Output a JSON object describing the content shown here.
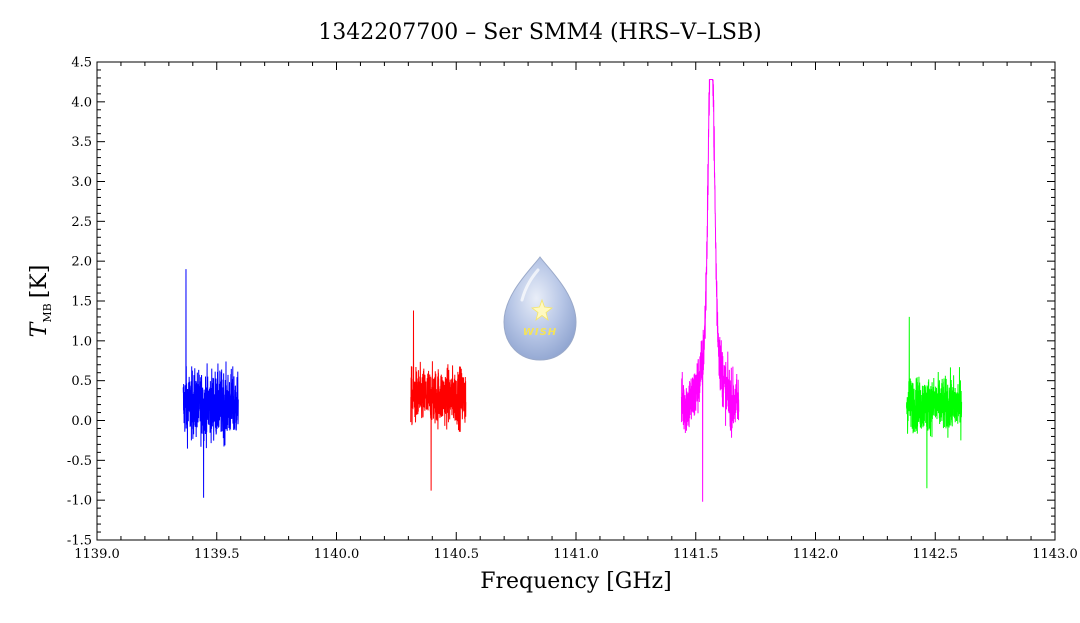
{
  "chart_data": {
    "type": "line",
    "title": "1342207700 – Ser SMM4 (HRS–V–LSB)",
    "xlabel": "Frequency [GHz]",
    "ylabel": {
      "main": "T",
      "subscript": "MB",
      "unit": "[K]"
    },
    "xlim": [
      1139.0,
      1143.0
    ],
    "ylim": [
      -1.5,
      4.5
    ],
    "x_ticks": [
      "1139.0",
      "1139.5",
      "1140.0",
      "1140.5",
      "1141.0",
      "1141.5",
      "1142.0",
      "1142.5",
      "1143.0"
    ],
    "y_ticks": [
      "-1.5",
      "-1.0",
      "-0.5",
      "0.0",
      "0.5",
      "1.0",
      "1.5",
      "2.0",
      "2.5",
      "3.0",
      "3.5",
      "4.0",
      "4.5"
    ],
    "grid": false,
    "legend": "none",
    "logo_text": "WISH",
    "series": [
      {
        "color": "#0000ff",
        "x_range": [
          1139.36,
          1139.59
        ],
        "baseline": 0.2,
        "noise": 0.38,
        "max": 1.9,
        "min": -0.97
      },
      {
        "color": "#ff0000",
        "x_range": [
          1140.31,
          1140.54
        ],
        "baseline": 0.3,
        "noise": 0.32,
        "max": 1.38,
        "min": -0.88
      },
      {
        "color": "#ff00ff",
        "x_range": [
          1141.44,
          1141.68
        ],
        "baseline": 0.2,
        "noise": 0.33,
        "max": 4.28,
        "min": -1.02,
        "peak": {
          "x": 1141.565,
          "height": 3.9,
          "width": 0.012
        }
      },
      {
        "color": "#00ff00",
        "x_range": [
          1142.38,
          1142.61
        ],
        "baseline": 0.2,
        "noise": 0.3,
        "max": 1.3,
        "min": -0.85
      }
    ]
  }
}
